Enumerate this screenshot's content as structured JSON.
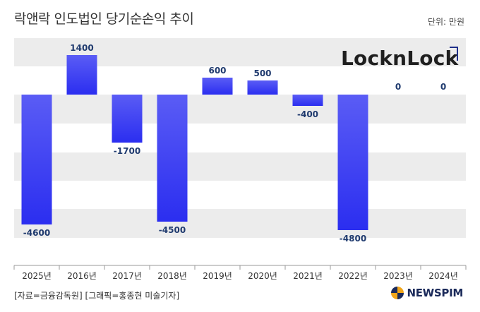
{
  "header": {
    "title": "락앤락 인도법인 당기순손익 추이",
    "unit": "단위: 만원"
  },
  "logo": {
    "text": "LocknLock"
  },
  "footer": {
    "source": "[자료=금융감독원] [그래픽=홍종현 미술기자]",
    "brand": "NEWSPIM"
  },
  "colors": {
    "bar_top": "#5a5cf5",
    "bar_bottom": "#2b2ef0",
    "label": "#1f3a6e",
    "band": "#ececec"
  },
  "chart_data": {
    "type": "bar",
    "categories": [
      "2025년",
      "2016년",
      "2017년",
      "2018년",
      "2019년",
      "2020년",
      "2021년",
      "2022년",
      "2023년",
      "2024년"
    ],
    "values": [
      -4600,
      1400,
      -1700,
      -4500,
      600,
      500,
      -400,
      -4800,
      0,
      0
    ],
    "data_labels": [
      "-4600",
      "1400",
      "-1700",
      "-4500",
      "600",
      "500",
      "-400",
      "-4800",
      "0",
      "0"
    ],
    "title": "락앤락 인도법인 당기순손익 추이",
    "ylim": [
      -5200,
      2000
    ],
    "grid": "horizontal bands",
    "legend": "none"
  }
}
